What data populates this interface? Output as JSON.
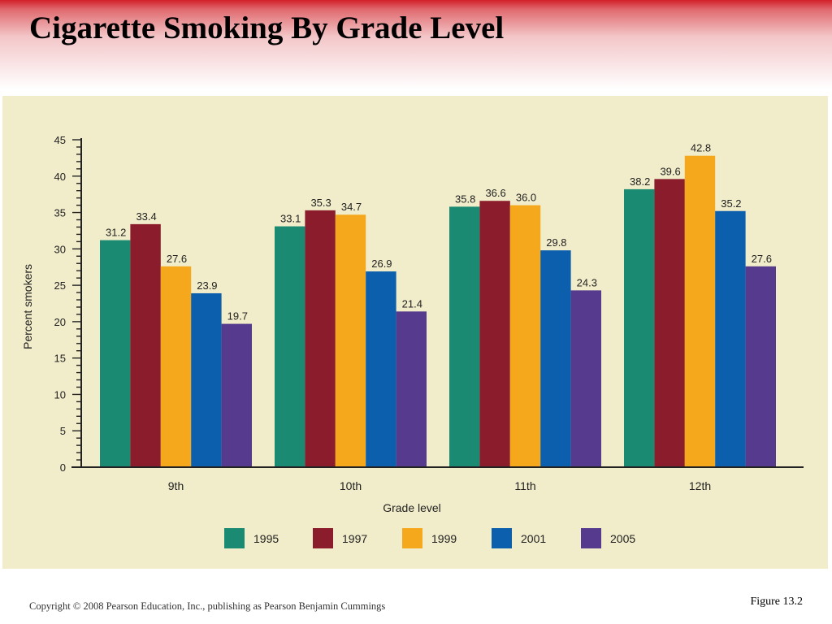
{
  "slide": {
    "title": "Cigarette Smoking By Grade Level",
    "footer_left": "Copyright © 2008 Pearson Education, Inc., publishing as Pearson Benjamin Cummings",
    "footer_right": "Figure 13.2"
  },
  "chart_data": {
    "type": "bar",
    "title": "",
    "xlabel": "Grade level",
    "ylabel": "Percent smokers",
    "ylim": [
      0,
      45
    ],
    "yticks": [
      0,
      5,
      10,
      15,
      20,
      25,
      30,
      35,
      40,
      45
    ],
    "categories": [
      "9th",
      "10th",
      "11th",
      "12th"
    ],
    "series": [
      {
        "name": "1995",
        "color": "#1b8a72",
        "values": [
          31.2,
          33.1,
          35.8,
          38.2
        ],
        "labels": [
          "31.2",
          "33.1",
          "35.8",
          "38.2"
        ]
      },
      {
        "name": "1997",
        "color": "#8a1c2b",
        "values": [
          33.4,
          35.3,
          36.6,
          39.6
        ],
        "labels": [
          "33.4",
          "35.3",
          "36.6",
          "39.6"
        ]
      },
      {
        "name": "1999",
        "color": "#f5a81c",
        "values": [
          27.6,
          34.7,
          36.0,
          42.8
        ],
        "labels": [
          "27.6",
          "34.7",
          "36.0",
          "42.8"
        ]
      },
      {
        "name": "2001",
        "color": "#0b5fad",
        "values": [
          23.9,
          26.9,
          29.8,
          35.2
        ],
        "labels": [
          "23.9",
          "26.9",
          "29.8",
          "35.2"
        ]
      },
      {
        "name": "2005",
        "color": "#563a8e",
        "values": [
          19.7,
          21.4,
          24.3,
          27.6
        ],
        "labels": [
          "19.7",
          "21.4",
          "24.3",
          "27.6"
        ]
      }
    ],
    "grid": false,
    "legend": "bottom"
  }
}
